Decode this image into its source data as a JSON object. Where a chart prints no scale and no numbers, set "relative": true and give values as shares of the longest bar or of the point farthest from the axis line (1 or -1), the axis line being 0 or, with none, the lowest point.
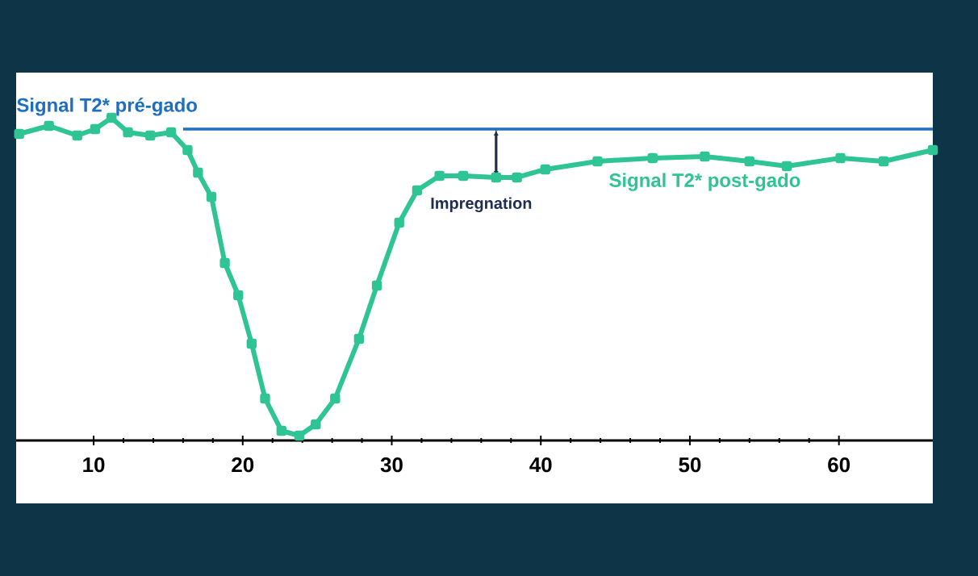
{
  "chart_data": {
    "type": "line",
    "relative": true,
    "xlim": [
      4.8,
      66.3
    ],
    "xticks": [
      10,
      20,
      30,
      40,
      50,
      60
    ],
    "annotations": [
      "Impregnation"
    ],
    "legend": false,
    "grid": false,
    "series": [
      {
        "name": "Signal T2* pré-gado",
        "color": "#1f6fc0",
        "marker": "none",
        "x": [
          16,
          66.3
        ],
        "values": [
          0.965,
          0.965
        ]
      },
      {
        "name": "Signal T2* post-gado",
        "color": "#2fc494",
        "marker": "square",
        "x": [
          5.0,
          7.0,
          8.9,
          10.1,
          11.2,
          12.3,
          13.8,
          15.2,
          16.3,
          17.0,
          17.9,
          18.8,
          19.7,
          20.6,
          21.5,
          22.6,
          23.8,
          24.9,
          26.2,
          27.8,
          29.0,
          30.5,
          31.7,
          33.2,
          34.8,
          37.0,
          38.4,
          40.3,
          43.8,
          47.5,
          51.0,
          54.0,
          56.5,
          60.1,
          63.0,
          66.3
        ],
        "values": [
          0.95,
          0.975,
          0.945,
          0.965,
          1.0,
          0.955,
          0.945,
          0.955,
          0.9,
          0.83,
          0.755,
          0.55,
          0.45,
          0.3,
          0.13,
          0.03,
          0.015,
          0.05,
          0.13,
          0.315,
          0.48,
          0.675,
          0.775,
          0.82,
          0.82,
          0.815,
          0.815,
          0.84,
          0.865,
          0.875,
          0.88,
          0.865,
          0.85,
          0.875,
          0.865,
          0.9
        ]
      }
    ]
  }
}
